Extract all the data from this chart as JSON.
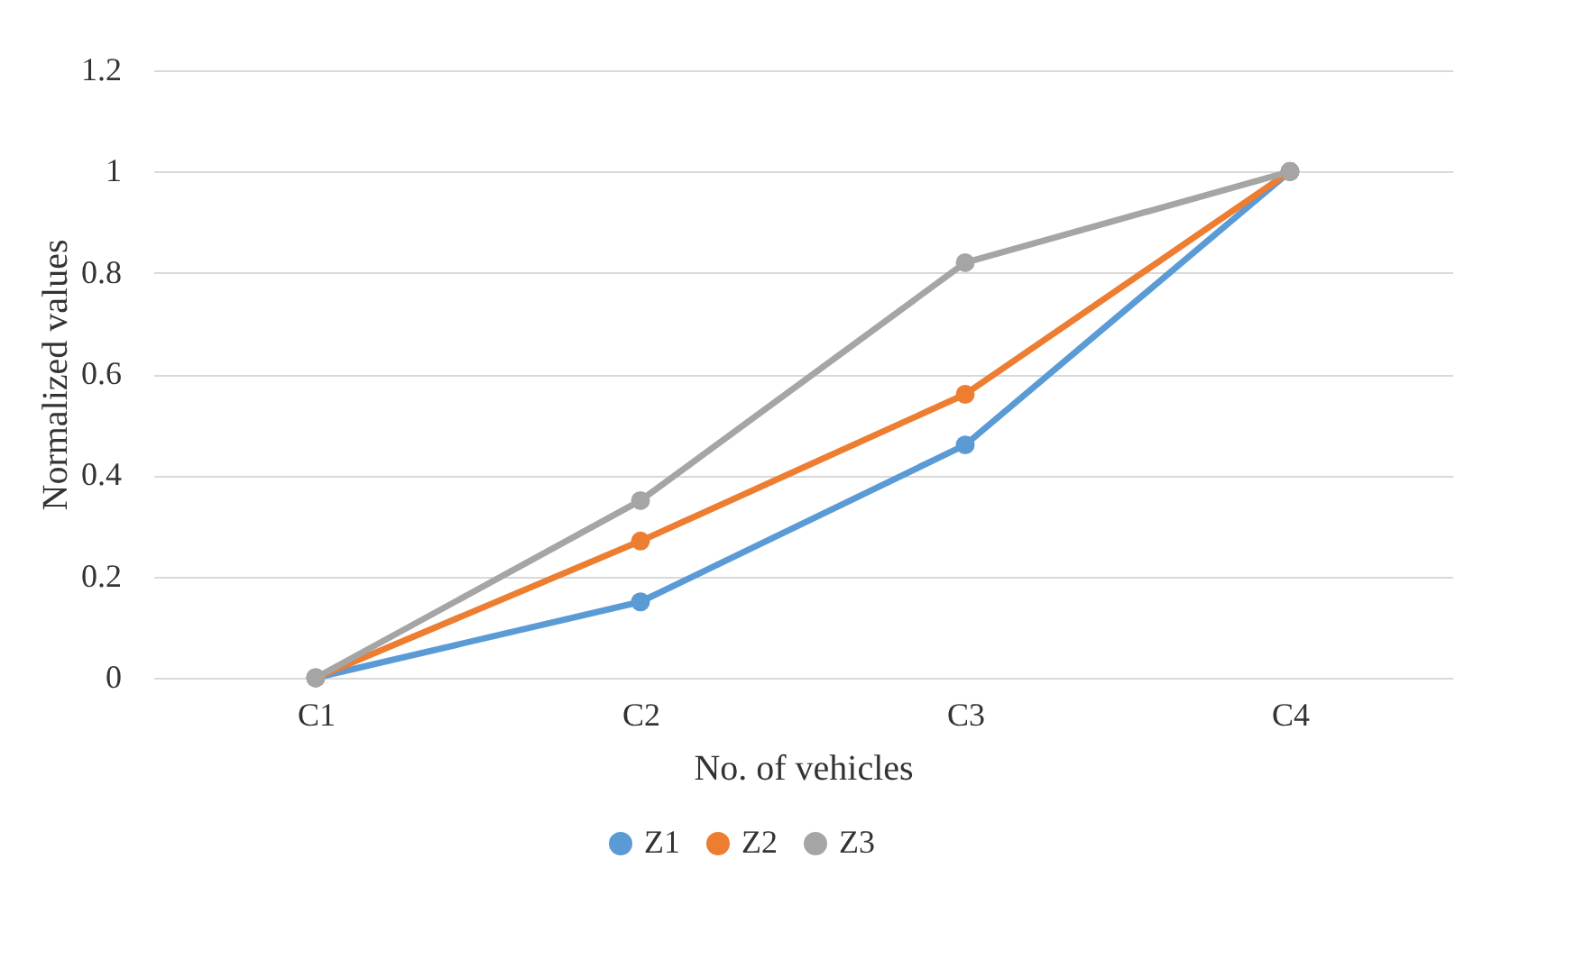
{
  "chart_data": {
    "type": "line",
    "xlabel": "No. of vehicles",
    "ylabel": "Normalized values",
    "categories": [
      "C1",
      "C2",
      "C3",
      "C4"
    ],
    "series": [
      {
        "name": "Z1",
        "color": "#5b9bd5",
        "values": [
          0,
          0.15,
          0.46,
          1
        ]
      },
      {
        "name": "Z2",
        "color": "#ed7d31",
        "values": [
          0,
          0.27,
          0.56,
          1
        ]
      },
      {
        "name": "Z3",
        "color": "#a5a5a5",
        "values": [
          0,
          0.35,
          0.82,
          1
        ]
      }
    ],
    "ylim": [
      0,
      1.2
    ],
    "yticks": [
      0,
      0.2,
      0.4,
      0.6,
      0.8,
      1,
      1.2
    ],
    "grid": "y",
    "legend": "bottom",
    "marker": "circle",
    "line_style": "solid"
  }
}
